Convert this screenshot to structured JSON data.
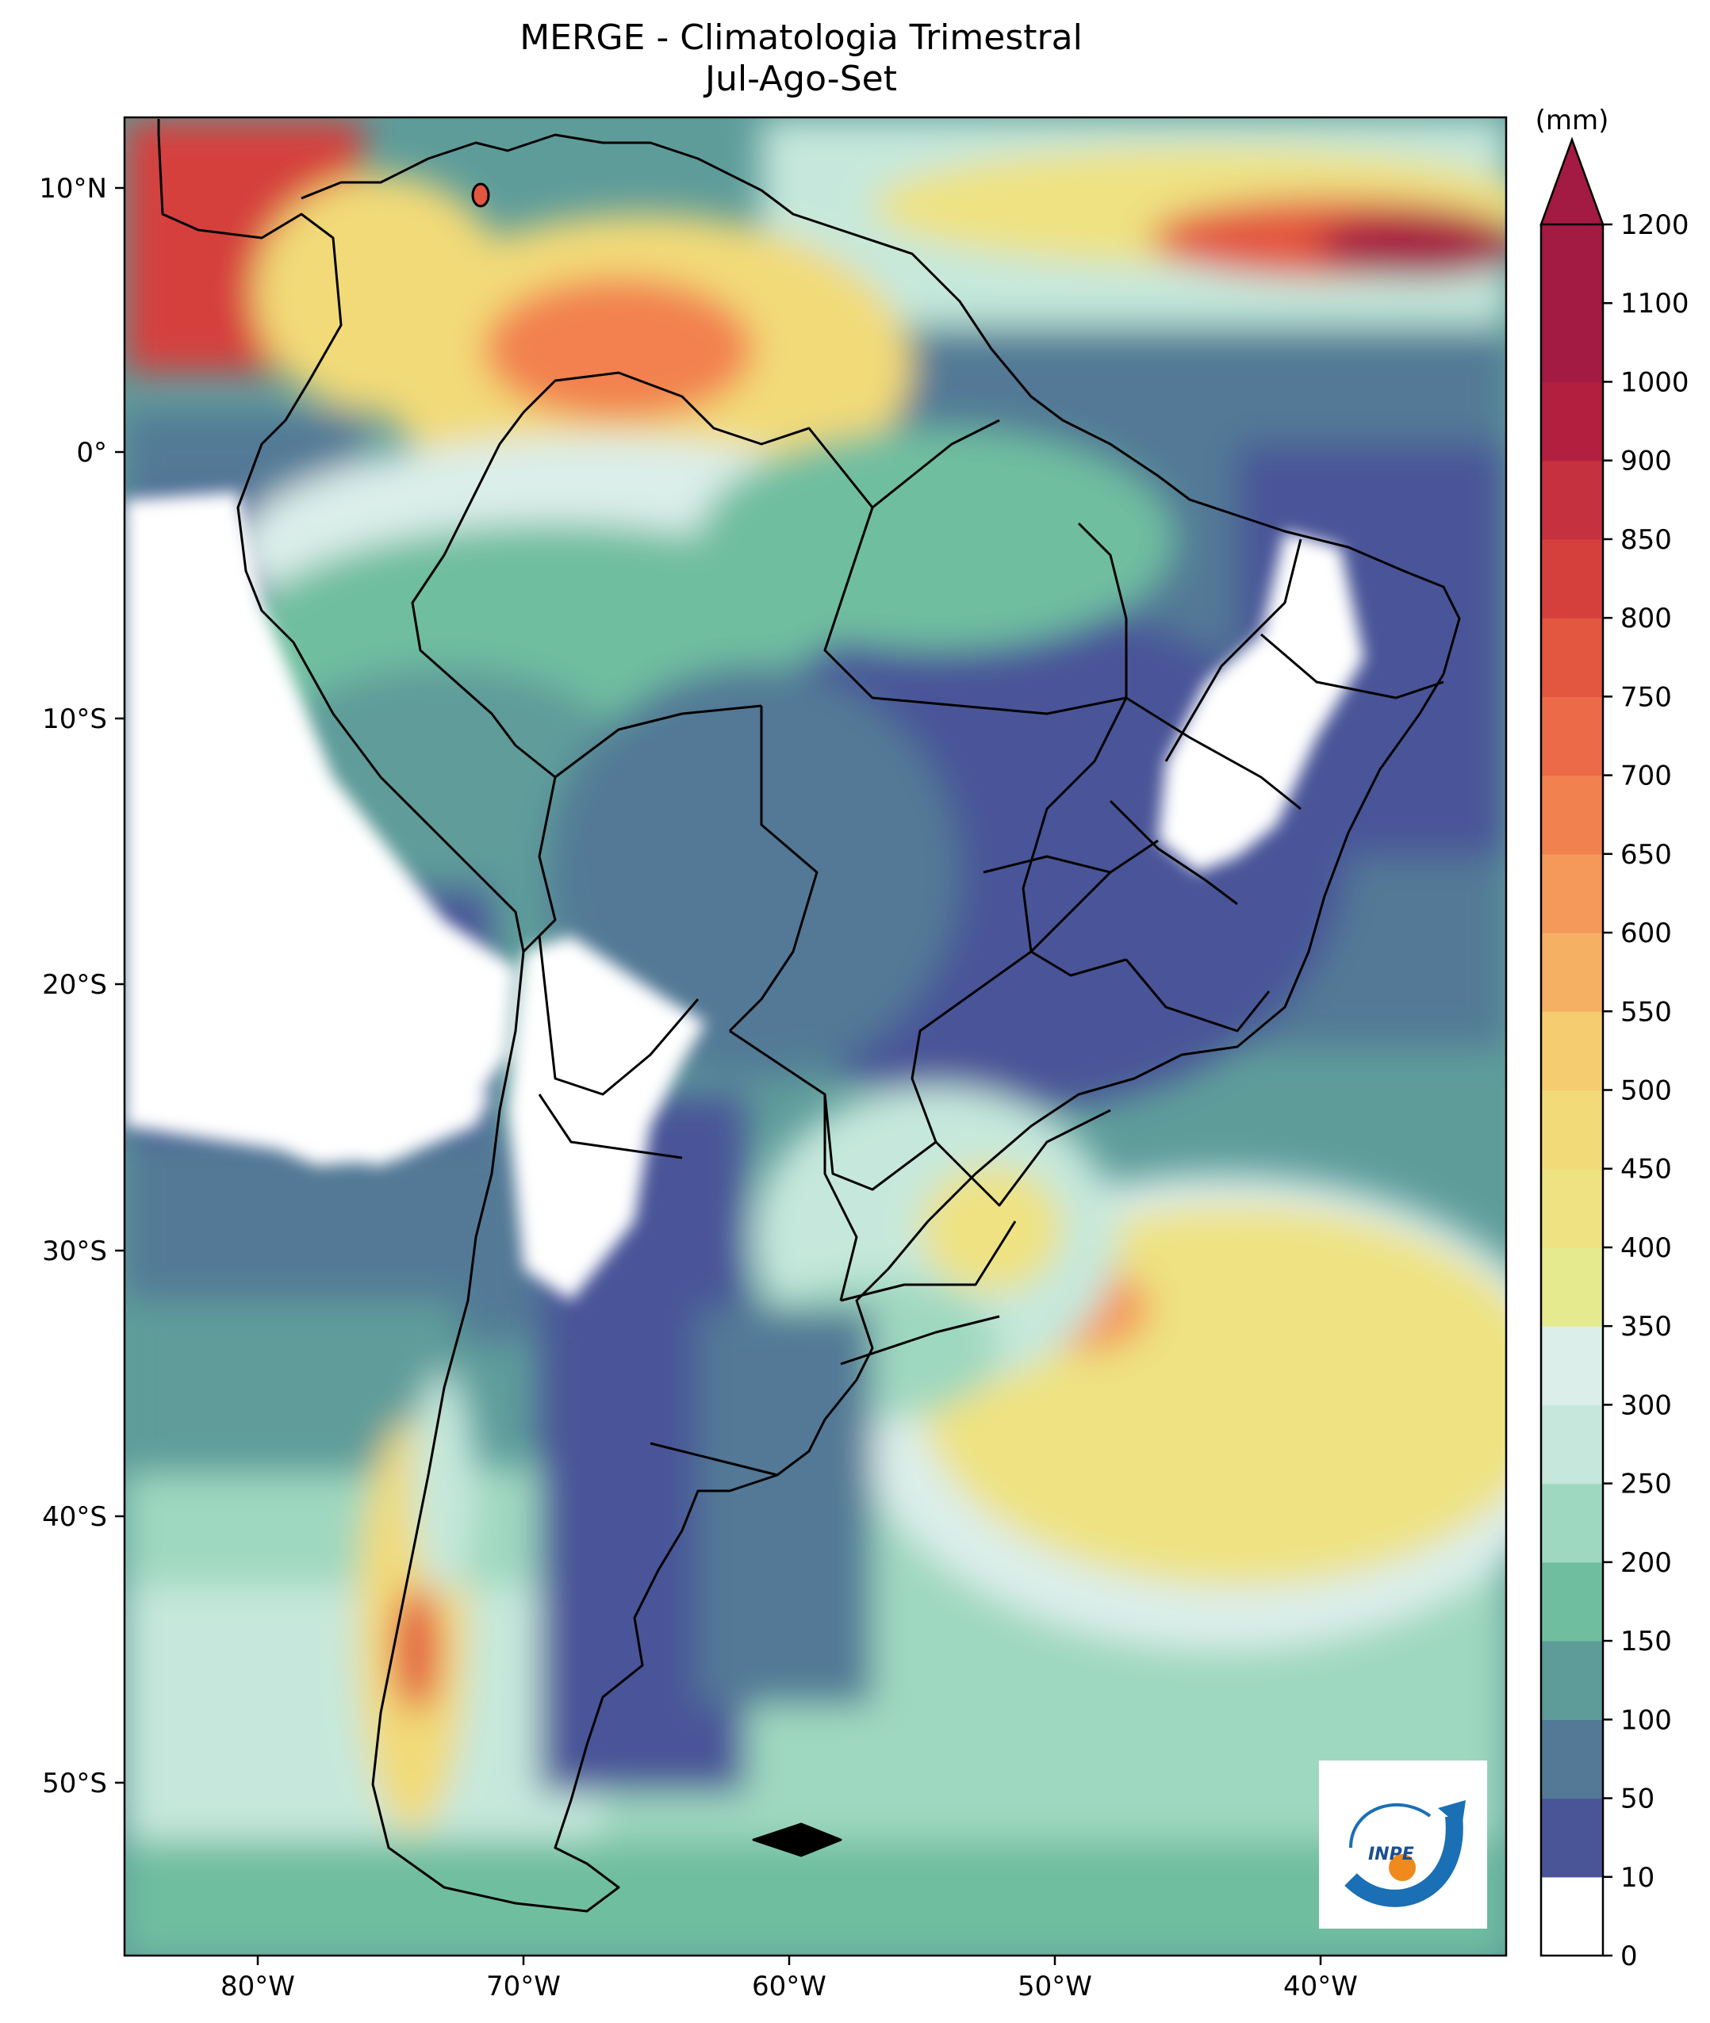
{
  "title": {
    "line1": "MERGE - Climatologia Trimestral",
    "line2": "Jul-Ago-Set"
  },
  "map": {
    "region": "South America",
    "lon_range": [
      -85,
      -33
    ],
    "lat_range": [
      -56,
      13
    ],
    "lon_ticks": [
      "80°W",
      "70°W",
      "60°W",
      "50°W",
      "40°W"
    ],
    "lat_ticks": [
      "10°N",
      "0°",
      "10°S",
      "20°S",
      "30°S",
      "40°S",
      "50°S"
    ]
  },
  "colorbar": {
    "unit": "(mm)",
    "levels": [
      "0",
      "10",
      "50",
      "100",
      "150",
      "200",
      "250",
      "300",
      "350",
      "400",
      "450",
      "500",
      "550",
      "600",
      "650",
      "700",
      "750",
      "800",
      "850",
      "900",
      "1000",
      "1100",
      "1200"
    ],
    "colors": [
      "#ffffff",
      "#4a5598",
      "#537996",
      "#5e9c9a",
      "#6fbea0",
      "#9fd8c0",
      "#c6e8dc",
      "#dbeeea",
      "#e6ea8f",
      "#eee282",
      "#f2da78",
      "#f6cc70",
      "#f5b064",
      "#f4995a",
      "#f28150",
      "#ec6a48",
      "#e3563f",
      "#d5403d",
      "#c6313f",
      "#b3203f",
      "#a31a43",
      "#a31a43"
    ]
  },
  "logo": {
    "text": "INPE"
  }
}
